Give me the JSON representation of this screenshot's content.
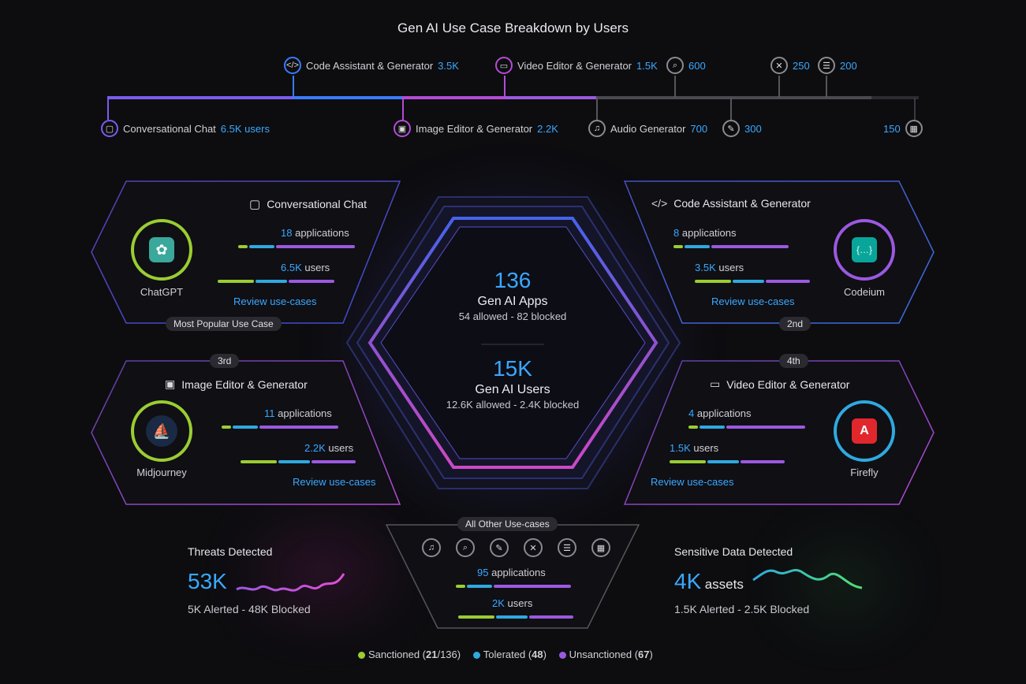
{
  "title": "Gen AI Use Case Breakdown by Users",
  "timeline": {
    "top": [
      {
        "label": "Code Assistant & Generator",
        "value": "3.5K",
        "icon": "code-icon"
      },
      {
        "label": "Video Editor & Generator",
        "value": "1.5K",
        "icon": "video-icon"
      },
      {
        "label": "",
        "value": "600",
        "icon": "search-icon"
      },
      {
        "label": "",
        "value": "250",
        "icon": "tools-icon"
      },
      {
        "label": "",
        "value": "200",
        "icon": "list-icon"
      }
    ],
    "bottom": [
      {
        "label": "Conversational Chat",
        "value": "6.5K users",
        "icon": "chat-icon"
      },
      {
        "label": "Image Editor & Generator",
        "value": "2.2K",
        "icon": "image-icon"
      },
      {
        "label": "Audio Generator",
        "value": "700",
        "icon": "music-icon"
      },
      {
        "label": "",
        "value": "300",
        "icon": "pen-icon"
      },
      {
        "label": "",
        "value": "150",
        "icon": "calendar-icon"
      }
    ]
  },
  "center": {
    "apps_value": "136",
    "apps_label": "Gen AI Apps",
    "apps_sub": "54 allowed - 82 blocked",
    "users_value": "15K",
    "users_label": "Gen AI Users",
    "users_sub": "12.6K allowed - 2.4K blocked"
  },
  "cards": {
    "chat": {
      "title": "Conversational Chat",
      "apps": "18",
      "users": "6.5K",
      "app": "ChatGPT",
      "badge": "Most Popular Use Case",
      "review": "Review use-cases"
    },
    "code": {
      "title": "Code Assistant & Generator",
      "apps": "8",
      "users": "3.5K",
      "app": "Codeium",
      "badge": "2nd",
      "review": "Review use-cases"
    },
    "image": {
      "title": "Image Editor & Generator",
      "apps": "11",
      "users": "2.2K",
      "app": "Midjourney",
      "badge": "3rd",
      "review": "Review use-cases"
    },
    "video": {
      "title": "Video Editor & Generator",
      "apps": "4",
      "users": "1.5K",
      "app": "Firefly",
      "badge": "4th",
      "review": "Review use-cases"
    }
  },
  "labels": {
    "applications": "applications",
    "users": "users"
  },
  "other": {
    "badge": "All Other Use-cases",
    "apps": "95",
    "users": "2K"
  },
  "threats": {
    "title": "Threats Detected",
    "value": "53K",
    "sub": "5K Alerted - 48K Blocked"
  },
  "sensitive": {
    "title": "Sensitive Data Detected",
    "value": "4K",
    "unit": "assets",
    "sub": "1.5K Alerted - 2.5K Blocked"
  },
  "legend": {
    "sanctioned": "Sanctioned (",
    "sanctioned_n": "21",
    "sanctioned_rest": "/136)",
    "tolerated": "Tolerated (",
    "tolerated_n": "48",
    "tolerated_rest": ")",
    "unsanctioned": "Unsanctioned (",
    "unsanctioned_n": "67",
    "unsanctioned_rest": ")"
  },
  "colors": {
    "sanctioned": "#9acd32",
    "tolerated": "#2fa9e0",
    "unsanctioned": "#9b59e0",
    "accent": "#3aa8ff"
  }
}
